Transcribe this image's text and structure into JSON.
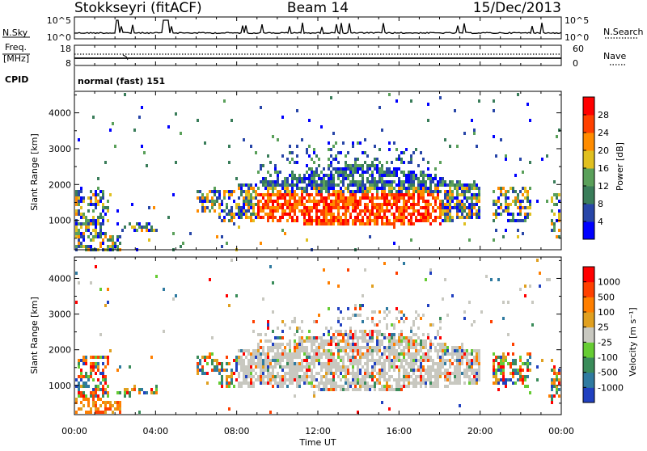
{
  "header": {
    "station": "Stokkseyri (fitACF)",
    "beam": "Beam 14",
    "date": "15/Dec/2013"
  },
  "nsky_panel": {
    "left_label": "N.Sky",
    "right_label": "N.Search",
    "left_ticks": [
      "10^5",
      "10^0"
    ],
    "right_ticks": [
      "10^5",
      "10^0"
    ]
  },
  "freq_panel": {
    "left_label_1": "Freq.",
    "left_label_2": "[MHz]",
    "right_label": "Nave",
    "left_ticks": [
      "18",
      "8"
    ],
    "right_ticks": [
      "60",
      "0"
    ]
  },
  "cpid": {
    "label": "CPID",
    "mode": "normal (fast) 151"
  },
  "chart_data": [
    {
      "type": "heatmap",
      "ylabel": "Slant Range [km]",
      "ylim": [
        180,
        4600
      ],
      "yticks": [
        "4000",
        "3000",
        "2000",
        "1000"
      ],
      "yticks_values": [
        4000,
        3000,
        2000,
        1000
      ],
      "xlim": [
        0,
        24
      ],
      "colorbar": {
        "label": "Power [dB]",
        "ticks": [
          "28",
          "24",
          "20",
          "16",
          "12",
          "8",
          "4"
        ],
        "colors": [
          "#0000ff",
          "#2846a8",
          "#3a7d5a",
          "#5aa05a",
          "#e0c020",
          "#ff8c00",
          "#ff4000",
          "#ff0000"
        ]
      }
    },
    {
      "type": "heatmap",
      "ylabel": "Slant Range [km]",
      "ylim": [
        180,
        4600
      ],
      "yticks": [
        "4000",
        "3000",
        "2000",
        "1000"
      ],
      "yticks_values": [
        4000,
        3000,
        2000,
        1000
      ],
      "xlim": [
        0,
        24
      ],
      "colorbar": {
        "label": "Velocity [m s⁻¹]",
        "ticks": [
          "1000",
          "500",
          "100",
          "25",
          "-25",
          "-100",
          "-500",
          "-1000"
        ],
        "colors": [
          "#2040c0",
          "#2f7aa0",
          "#3a8c5a",
          "#66cc33",
          "#c8c8c0",
          "#e0a020",
          "#ff7f00",
          "#ff4000",
          "#ff0000"
        ]
      }
    }
  ],
  "xaxis": {
    "label": "Time UT",
    "ticks": [
      "00:00",
      "04:00",
      "08:00",
      "12:00",
      "16:00",
      "20:00",
      "00:00"
    ],
    "tick_hours": [
      0,
      4,
      8,
      12,
      16,
      20,
      24
    ]
  },
  "colors": {
    "power_low": "#0000ff",
    "power_high": "#ff0000",
    "ground_scatter": "#c8c8c0"
  }
}
